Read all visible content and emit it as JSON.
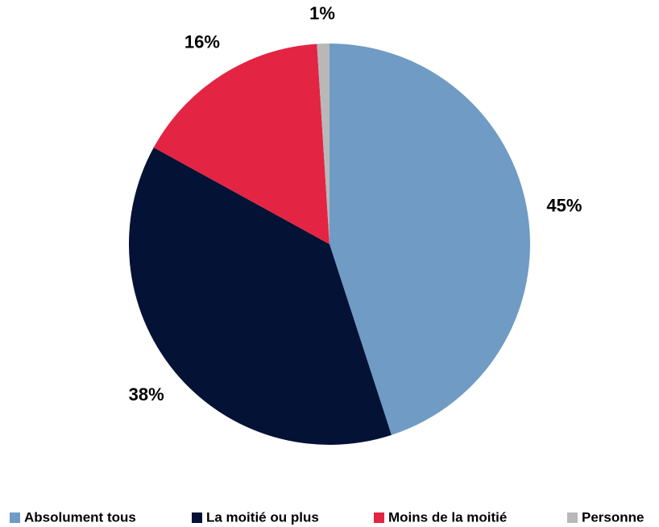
{
  "chart_data": {
    "type": "pie",
    "categories": [
      "Absolument tous",
      "La moitié ou plus",
      "Moins de la moitié",
      "Personne"
    ],
    "values": [
      45,
      38,
      16,
      1
    ],
    "value_labels": [
      "45%",
      "38%",
      "16%",
      "1%"
    ],
    "colors": [
      "#6f9bc4",
      "#041235",
      "#e32443",
      "#b8b8b8"
    ],
    "legend": "bottom"
  }
}
